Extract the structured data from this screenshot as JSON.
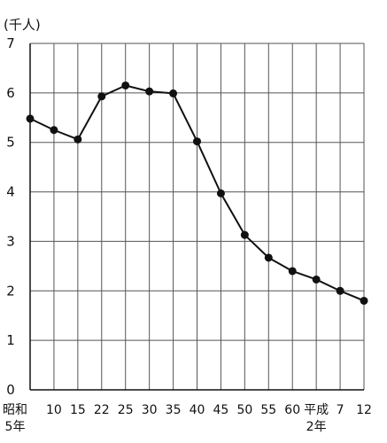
{
  "chart_data": {
    "type": "line",
    "unit_label": "(千人)",
    "ylim": [
      0,
      7
    ],
    "y_ticks": [
      "0",
      "1",
      "2",
      "3",
      "4",
      "5",
      "6",
      "7"
    ],
    "grid": true,
    "categories": [
      {
        "line1": "昭和",
        "line2": "5年"
      },
      {
        "line1": "10",
        "line2": ""
      },
      {
        "line1": "15",
        "line2": ""
      },
      {
        "line1": "22",
        "line2": ""
      },
      {
        "line1": "25",
        "line2": ""
      },
      {
        "line1": "30",
        "line2": ""
      },
      {
        "line1": "35",
        "line2": ""
      },
      {
        "line1": "40",
        "line2": ""
      },
      {
        "line1": "45",
        "line2": ""
      },
      {
        "line1": "50",
        "line2": ""
      },
      {
        "line1": "55",
        "line2": ""
      },
      {
        "line1": "60",
        "line2": ""
      },
      {
        "line1": "平成",
        "line2": "2年"
      },
      {
        "line1": "7",
        "line2": ""
      },
      {
        "line1": "12",
        "line2": ""
      }
    ],
    "series": [
      {
        "values": [
          5.48,
          5.25,
          5.06,
          5.93,
          6.15,
          6.03,
          5.99,
          5.02,
          3.97,
          3.13,
          2.67,
          2.4,
          2.23,
          2.0,
          1.8
        ],
        "color": "#111111"
      }
    ]
  }
}
